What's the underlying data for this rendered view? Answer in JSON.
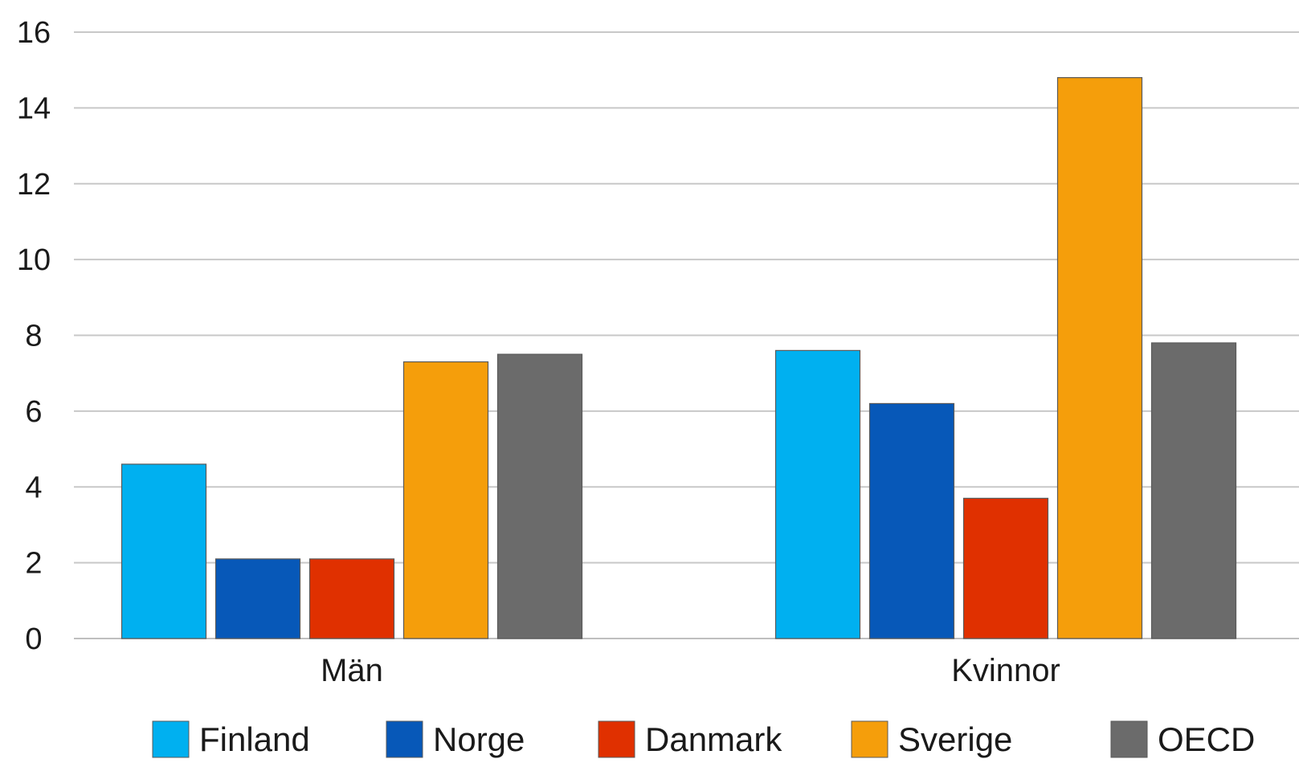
{
  "chart_data": {
    "type": "bar",
    "title": "",
    "xlabel": "",
    "ylabel": "",
    "categories": [
      "Män",
      "Kvinnor"
    ],
    "ylim": [
      0,
      16
    ],
    "yticks": [
      0,
      2,
      4,
      6,
      8,
      10,
      12,
      14,
      16
    ],
    "grid": true,
    "legend_position": "bottom",
    "series": [
      {
        "name": "Finland",
        "color": "#00B0F0",
        "values": [
          4.6,
          7.6
        ]
      },
      {
        "name": "Norge",
        "color": "#0758B8",
        "values": [
          2.1,
          6.2
        ]
      },
      {
        "name": "Danmark",
        "color": "#E03000",
        "values": [
          2.1,
          3.7
        ]
      },
      {
        "name": "Sverige",
        "color": "#F59E0B",
        "values": [
          7.3,
          14.8
        ]
      },
      {
        "name": "OECD",
        "color": "#6B6B6B",
        "values": [
          7.5,
          7.8
        ]
      }
    ],
    "colors": {
      "grid": "#C8C8C8",
      "axis": "#BFBFBF",
      "text": "#1a1a1a",
      "bar_stroke": "#5a5a5a"
    }
  }
}
